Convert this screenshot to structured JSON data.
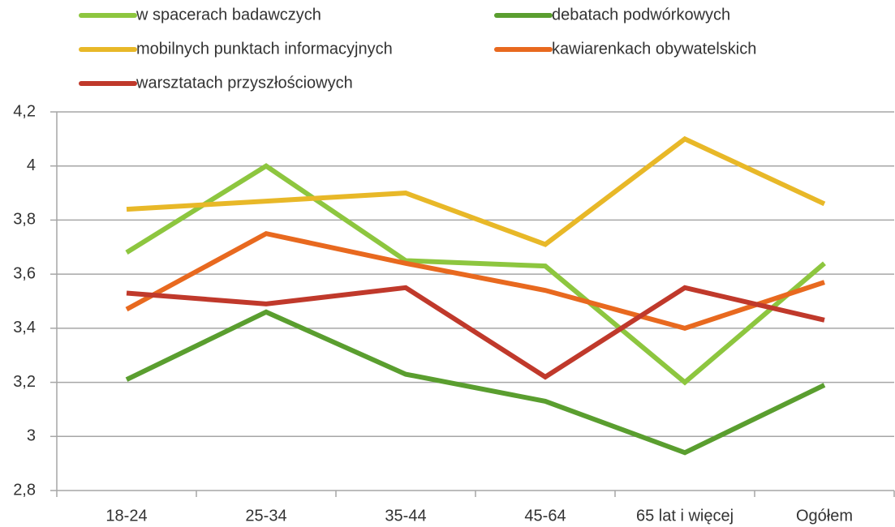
{
  "chart_data": {
    "type": "line",
    "categories": [
      "18-24",
      "25-34",
      "35-44",
      "45-64",
      "65 lat i więcej",
      "Ogółem"
    ],
    "series": [
      {
        "name": "w spacerach badawczych",
        "color": "#8dc63f",
        "values": [
          3.68,
          4.0,
          3.65,
          3.63,
          3.2,
          3.64
        ]
      },
      {
        "name": "debatach podwórkowych",
        "color": "#5a9e2f",
        "values": [
          3.21,
          3.46,
          3.23,
          3.13,
          2.94,
          3.19
        ]
      },
      {
        "name": "mobilnych punktach informacyjnych",
        "color": "#e8b828",
        "values": [
          3.84,
          3.87,
          3.9,
          3.71,
          4.1,
          3.86
        ]
      },
      {
        "name": "kawiarenkach obywatelskich",
        "color": "#e8691f",
        "values": [
          3.47,
          3.75,
          3.64,
          3.54,
          3.4,
          3.57
        ]
      },
      {
        "name": "warsztatach przyszłościowych",
        "color": "#c0392b",
        "values": [
          3.53,
          3.49,
          3.55,
          3.22,
          3.55,
          3.43
        ]
      }
    ],
    "ylim": [
      2.8,
      4.2
    ],
    "yticks": [
      {
        "value": 2.8,
        "label": "2,8"
      },
      3,
      {
        "value": 3.2,
        "label": "3,2"
      },
      {
        "value": 3.4,
        "label": "3,4"
      },
      {
        "value": 3.6,
        "label": "3,6"
      },
      {
        "value": 3.8,
        "label": "3,8"
      },
      4,
      {
        "value": 4.2,
        "label": "4,2"
      }
    ],
    "grid": true,
    "legend": "top"
  }
}
